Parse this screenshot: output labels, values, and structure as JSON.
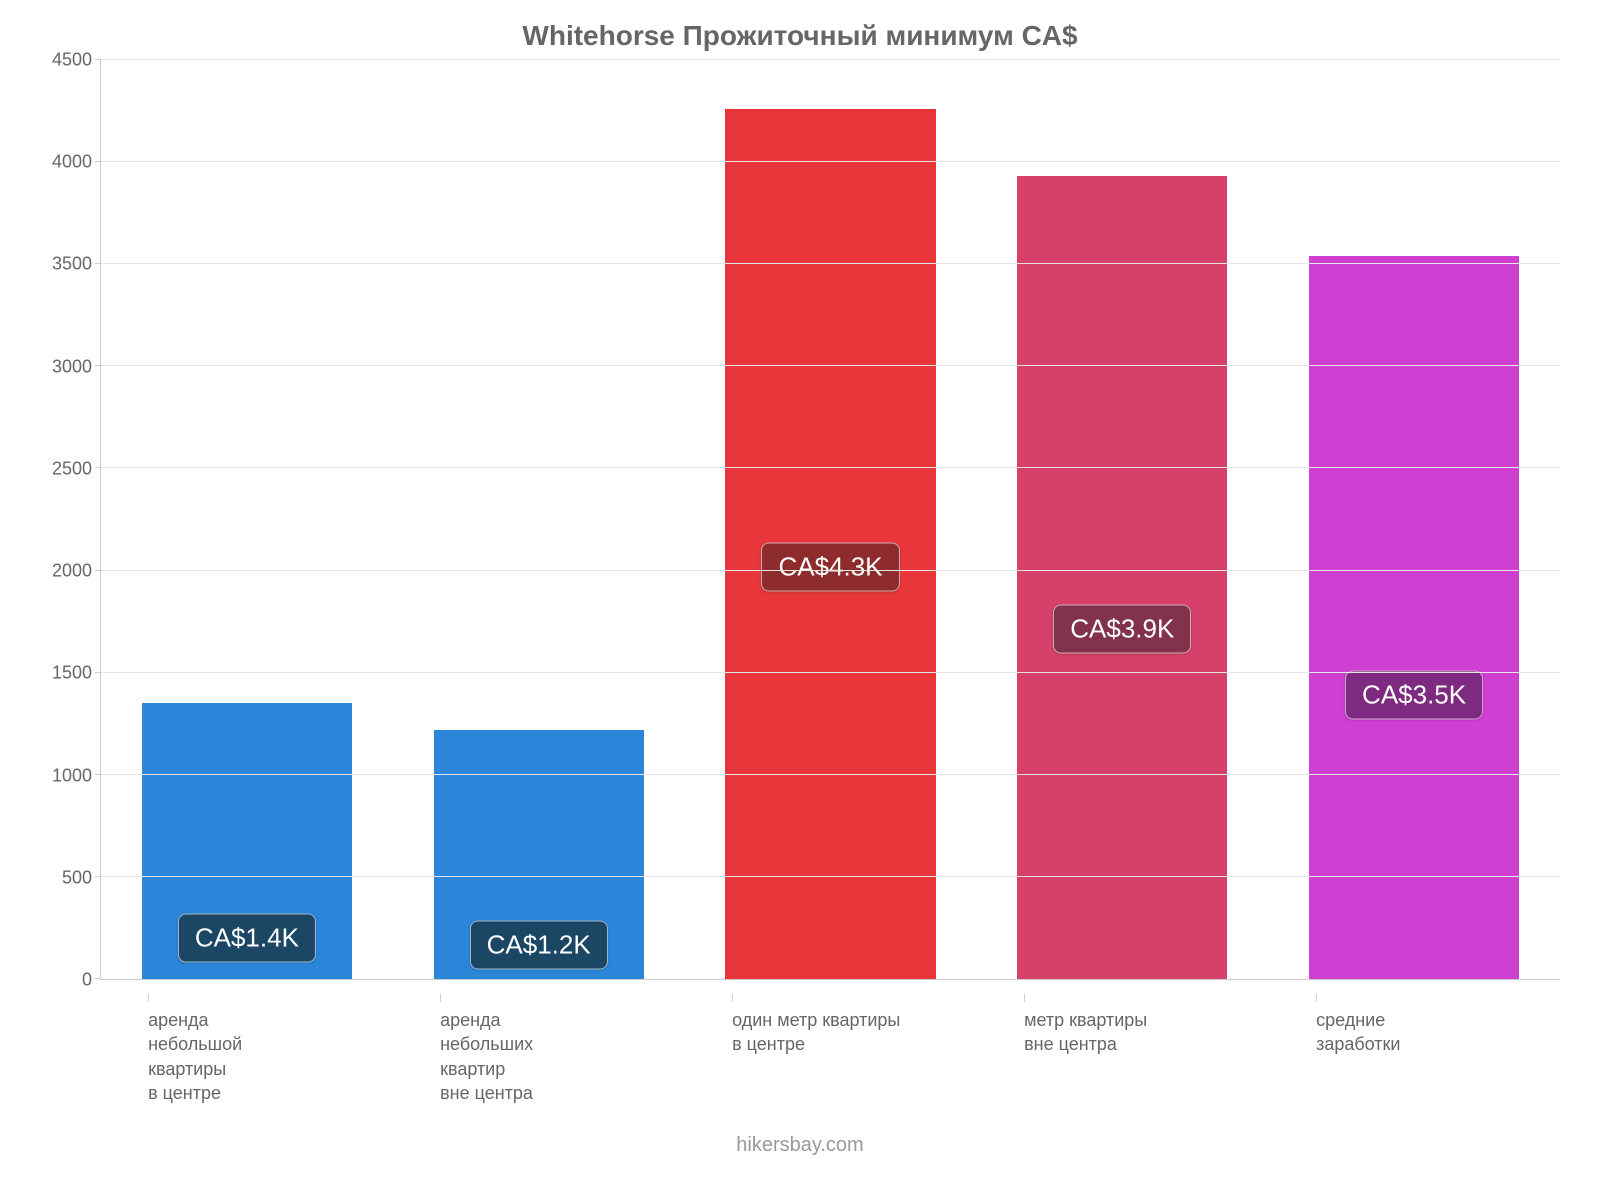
{
  "chart": {
    "type": "bar",
    "title": "Whitehorse Прожиточный минимум CA$",
    "title_fontsize": 28,
    "title_color": "#666666",
    "background_color": "#ffffff",
    "grid_color": "#e6e6e6",
    "axis_color": "#cccccc",
    "tick_label_color": "#666666",
    "tick_fontsize": 18,
    "ylim": [
      0,
      4500
    ],
    "ytick_step": 500,
    "yticks": [
      0,
      500,
      1000,
      1500,
      2000,
      2500,
      3000,
      3500,
      4000,
      4500
    ],
    "bar_width": 0.72,
    "categories": [
      "аренда\nнебольшой\nквартиры\nв центре",
      "аренда\nнебольших\nквартир\nвне центра",
      "один метр квартиры\nв центре",
      "метр квартиры\nвне центра",
      "средние\nзаработки"
    ],
    "values": [
      1350,
      1220,
      4260,
      3930,
      3540
    ],
    "value_labels": [
      "CA$1.4K",
      "CA$1.2K",
      "CA$4.3K",
      "CA$3.9K",
      "CA$3.5K"
    ],
    "bar_colors": [
      "#2b85d9",
      "#2b85d9",
      "#e8363a",
      "#d6406a",
      "#cf3fd2"
    ],
    "badge_colors": [
      "#1b4664",
      "#1b4664",
      "#8e2b2d",
      "#82324a",
      "#7e2a80"
    ],
    "badge_text_color": "#ffffff",
    "badge_fontsize": 26,
    "attribution": "hikersbay.com",
    "attribution_color": "#999999"
  }
}
